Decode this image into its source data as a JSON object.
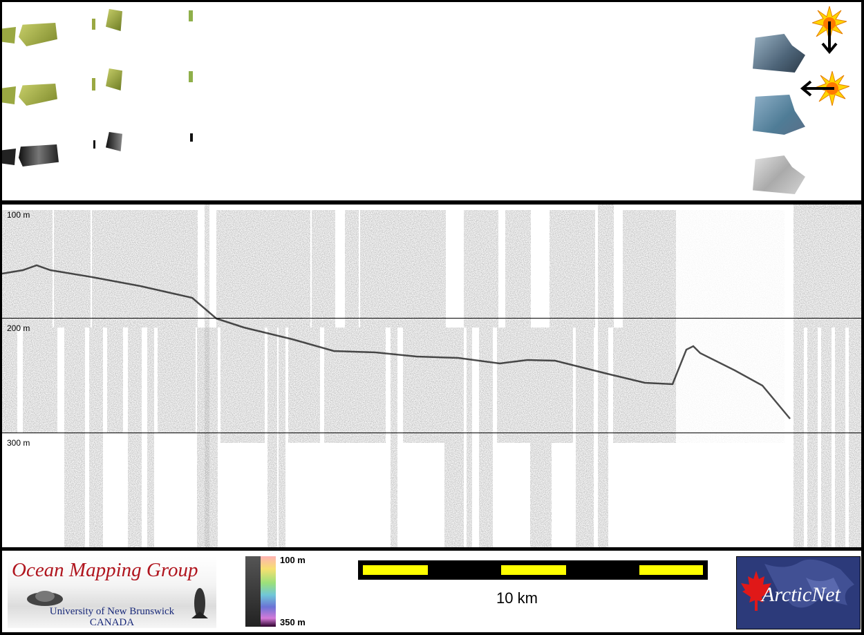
{
  "depth_labels": [
    "100 m",
    "200 m",
    "300 m"
  ],
  "legend": {
    "top_label": "100 m",
    "bottom_label": "350 m"
  },
  "scale_bar": {
    "label": "10 km"
  },
  "logos": {
    "omg_title": "Ocean Mapping Group",
    "omg_line1": "University of New Brunswick",
    "omg_line2": "CANADA",
    "arcticnet": "ArcticNet"
  },
  "colors": {
    "background": "#000000",
    "panel": "#ffffff",
    "scale_bar": "#ffff00",
    "omg_red": "#b0151e",
    "arcticnet_blue": "#2c3a7a"
  },
  "icons": [
    "sun-icon",
    "arrow-down-icon",
    "arrow-left-icon"
  ]
}
